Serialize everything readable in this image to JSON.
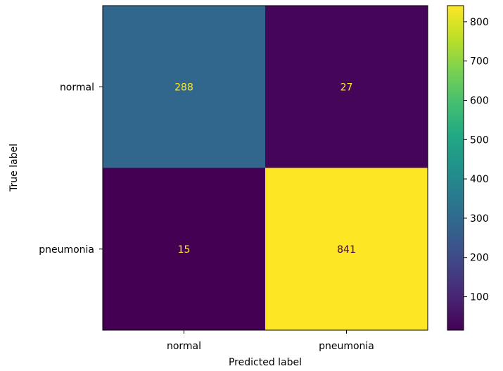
{
  "chart_data": {
    "type": "heatmap",
    "title": "",
    "xlabel": "Predicted label",
    "ylabel": "True label",
    "x_categories": [
      "normal",
      "pneumonia"
    ],
    "y_categories": [
      "normal",
      "pneumonia"
    ],
    "values": [
      [
        288,
        27
      ],
      [
        15,
        841
      ]
    ],
    "colormap": "viridis",
    "colorbar": {
      "range": [
        15,
        841
      ],
      "ticks": [
        "100",
        "200",
        "300",
        "400",
        "500",
        "600",
        "700",
        "800"
      ]
    },
    "label_colors": {
      "light": "#fde725",
      "dark": "#440154"
    }
  }
}
